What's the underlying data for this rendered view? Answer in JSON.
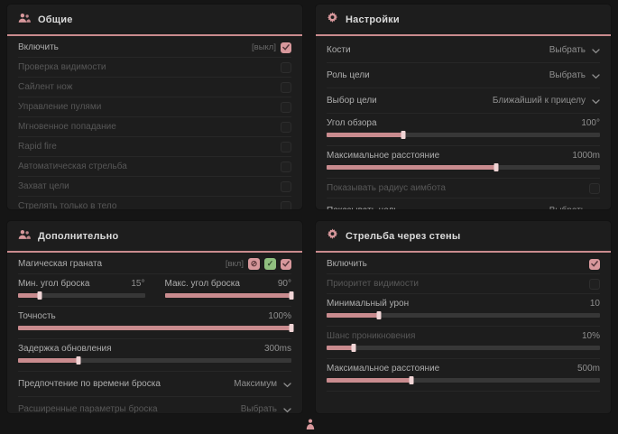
{
  "colors": {
    "accent": "#c98b8e",
    "checkbox_checked": "#d8989c",
    "green_badge": "#8fbf7f",
    "panel_bg": "#1d1d1d"
  },
  "footer": {
    "icon": "person-icon"
  },
  "panels": {
    "general": {
      "title": "Общие",
      "icon": "users-icon",
      "rows": [
        {
          "type": "checkbox",
          "label": "Включить",
          "tag": "[выкл]",
          "checked": true,
          "disabled": false
        },
        {
          "type": "checkbox",
          "label": "Проверка видимости",
          "checked": false,
          "disabled": true
        },
        {
          "type": "checkbox",
          "label": "Сайлент нож",
          "checked": false,
          "disabled": true
        },
        {
          "type": "checkbox",
          "label": "Управление пулями",
          "checked": false,
          "disabled": true
        },
        {
          "type": "checkbox",
          "label": "Мгновенное попадание",
          "checked": false,
          "disabled": true
        },
        {
          "type": "checkbox",
          "label": "Rapid fire",
          "checked": false,
          "disabled": true
        },
        {
          "type": "checkbox",
          "label": "Автоматическая стрельба",
          "checked": false,
          "disabled": true
        },
        {
          "type": "checkbox",
          "label": "Захват цели",
          "checked": false,
          "disabled": true
        },
        {
          "type": "checkbox",
          "label": "Стрелять только в тело",
          "checked": false,
          "disabled": true
        }
      ]
    },
    "settings": {
      "title": "Настройки",
      "icon": "gear-icon",
      "rows": [
        {
          "type": "select",
          "label": "Кости",
          "value": "Выбрать"
        },
        {
          "type": "select",
          "label": "Роль цели",
          "value": "Выбрать"
        },
        {
          "type": "select",
          "label": "Выбор цели",
          "value": "Ближайший к прицелу"
        },
        {
          "type": "slider",
          "label": "Угол обзора",
          "value": "100°",
          "fill": 28
        },
        {
          "type": "slider",
          "label": "Максимальное расстояние",
          "value": "1000m",
          "fill": 62
        },
        {
          "type": "checkbox",
          "label": "Показывать радиус аимбота",
          "checked": false,
          "disabled": true
        },
        {
          "type": "select",
          "label": "Показывать цель",
          "value": "Выбрать"
        }
      ]
    },
    "additional": {
      "title": "Дополнительно",
      "icon": "users-icon",
      "rows": [
        {
          "type": "checkbox",
          "label": "Магическая граната",
          "tag": "[вкл]",
          "badges": [
            "blocked-icon",
            "check-icon"
          ],
          "checked": true,
          "disabled": false
        },
        {
          "type": "slider_pair",
          "items": [
            {
              "label": "Мин. угол броска",
              "value": "15°",
              "fill": 17
            },
            {
              "label": "Макс. угол броска",
              "value": "90°",
              "fill": 100
            }
          ]
        },
        {
          "type": "slider",
          "label": "Точность",
          "value": "100%",
          "fill": 100
        },
        {
          "type": "slider",
          "label": "Задержка обновления",
          "value": "300ms",
          "fill": 22
        },
        {
          "type": "select",
          "label": "Предпочтение по времени броска",
          "value": "Максимум"
        },
        {
          "type": "select",
          "label": "Расширенные параметры броска",
          "value": "Выбрать",
          "disabled": true
        }
      ]
    },
    "walls": {
      "title": "Стрельба через стены",
      "icon": "gear-icon",
      "rows": [
        {
          "type": "checkbox",
          "label": "Включить",
          "checked": true,
          "disabled": false
        },
        {
          "type": "checkbox",
          "label": "Приоритет видимости",
          "checked": false,
          "disabled": true
        },
        {
          "type": "slider",
          "label": "Минимальный урон",
          "value": "10",
          "fill": 19
        },
        {
          "type": "slider",
          "label": "Шанс проникновения",
          "value": "10%",
          "fill": 10,
          "disabled": true
        },
        {
          "type": "slider",
          "label": "Максимальное расстояние",
          "value": "500m",
          "fill": 31
        }
      ]
    }
  }
}
